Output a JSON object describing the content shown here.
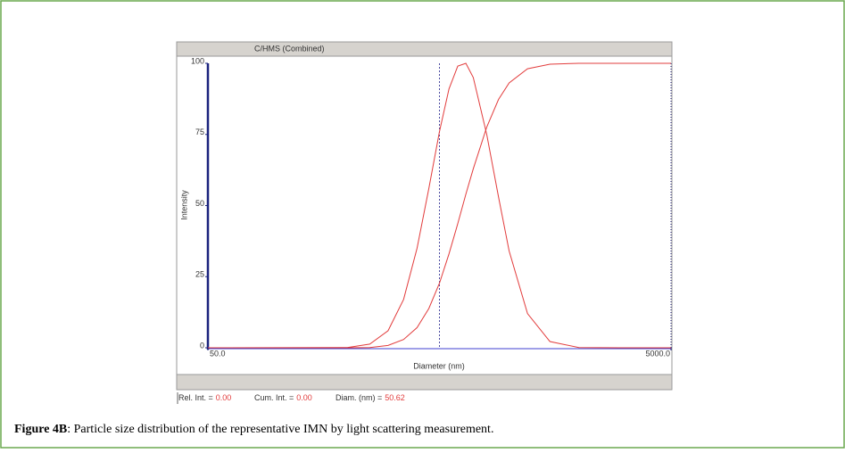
{
  "chart_data": {
    "type": "line",
    "title": "C/HMS (Combined)",
    "x_label": "Diameter (nm)",
    "y_label": "Intensity",
    "x_scale": "log",
    "xlim": [
      50,
      5000
    ],
    "ylim": [
      0,
      100
    ],
    "xticks": [
      {
        "value": 50,
        "label": "50.0"
      },
      {
        "value": 5000,
        "label": "5000.0"
      }
    ],
    "yticks": [
      0,
      25,
      50,
      75,
      100
    ],
    "cursor": 500,
    "x": [
      50,
      200,
      250,
      300,
      350,
      400,
      450,
      500,
      550,
      600,
      650,
      700,
      800,
      900,
      1000,
      1200,
      1500,
      2000,
      3000,
      5000
    ],
    "series": [
      {
        "color": "#e23c3c",
        "values": [
          0,
          0.1,
          1.3,
          6,
          17,
          35,
          56,
          76,
          91,
          99,
          100,
          95,
          75,
          53,
          34,
          12,
          2.2,
          0.1,
          0,
          0
        ]
      },
      {
        "color": "#e23c3c",
        "values": [
          0,
          0,
          0.1,
          0.8,
          2.9,
          7.1,
          13.8,
          22.7,
          33,
          43.6,
          54,
          62.9,
          77.6,
          87.3,
          93.1,
          98.1,
          99.7,
          100,
          100,
          100
        ]
      }
    ],
    "status": [
      {
        "label": "Rel. Int. =",
        "value": "0.00"
      },
      {
        "label": "Cum. Int. =",
        "value": "0.00"
      },
      {
        "label": "Diam. (nm) =",
        "value": "50.62"
      }
    ],
    "caption_label": "Figure 4B",
    "caption_text": ": Particle size distribution of the representative IMN by light scattering measurement."
  }
}
